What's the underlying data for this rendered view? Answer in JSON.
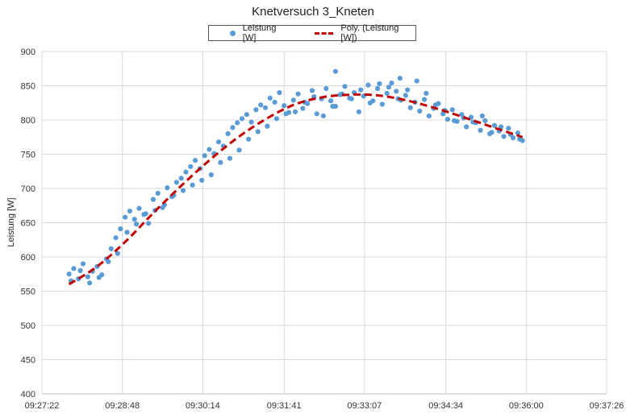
{
  "chart_data": {
    "type": "scatter",
    "title": "Knetversuch 3_Kneten",
    "xlabel": "",
    "ylabel": "Leistung [W]",
    "x_ticks": [
      "09:27:22",
      "09:28:48",
      "09:30:14",
      "09:31:41",
      "09:33:07",
      "09:34:34",
      "09:36:00",
      "09:37:26"
    ],
    "xlim": [
      "09:27:22",
      "09:37:26"
    ],
    "ylim": [
      400,
      900
    ],
    "y_ticks": [
      400,
      450,
      500,
      550,
      600,
      650,
      700,
      750,
      800,
      850,
      900
    ],
    "grid": true,
    "legend_position": "top-center",
    "colors": {
      "points": "#5b9bd5",
      "trend": "#c00000"
    },
    "series": [
      {
        "name": "Leistung [W]",
        "type": "scatter",
        "x": [
          "09:27:51",
          "09:27:56",
          "09:28:01",
          "09:28:06",
          "09:28:11",
          "09:28:16",
          "09:28:21",
          "09:28:26",
          "09:28:31",
          "09:28:36",
          "09:28:41",
          "09:28:46",
          "09:28:51",
          "09:28:56",
          "09:29:01",
          "09:29:06",
          "09:29:11",
          "09:29:16",
          "09:29:21",
          "09:29:26",
          "09:29:31",
          "09:29:36",
          "09:29:41",
          "09:29:46",
          "09:29:51",
          "09:29:56",
          "09:30:01",
          "09:30:06",
          "09:30:11",
          "09:30:16",
          "09:30:21",
          "09:30:26",
          "09:30:31",
          "09:30:36",
          "09:30:41",
          "09:30:46",
          "09:30:51",
          "09:30:56",
          "09:31:01",
          "09:31:06",
          "09:31:11",
          "09:31:16",
          "09:31:21",
          "09:31:26",
          "09:31:31",
          "09:31:36",
          "09:31:41",
          "09:31:46",
          "09:31:51",
          "09:31:56",
          "09:32:01",
          "09:32:06",
          "09:32:11",
          "09:32:16",
          "09:32:21",
          "09:32:26",
          "09:32:31",
          "09:32:36",
          "09:32:41",
          "09:32:46",
          "09:32:51",
          "09:32:56",
          "09:33:01",
          "09:33:06",
          "09:33:11",
          "09:33:16",
          "09:33:21",
          "09:33:26",
          "09:33:31",
          "09:33:36",
          "09:33:41",
          "09:33:46",
          "09:33:51",
          "09:33:56",
          "09:34:01",
          "09:34:06",
          "09:34:11",
          "09:34:16",
          "09:34:21",
          "09:34:26",
          "09:34:31",
          "09:34:36",
          "09:34:41",
          "09:34:46",
          "09:34:51",
          "09:34:56",
          "09:35:01",
          "09:35:06",
          "09:35:11",
          "09:35:16",
          "09:35:21",
          "09:35:26",
          "09:35:31",
          "09:35:36",
          "09:35:41",
          "09:35:46",
          "09:35:51",
          "09:35:56",
          "09:27:53",
          "09:28:03",
          "09:28:13",
          "09:28:23",
          "09:28:33",
          "09:28:43",
          "09:28:53",
          "09:29:03",
          "09:29:13",
          "09:29:23",
          "09:29:33",
          "09:29:43",
          "09:29:53",
          "09:30:03",
          "09:30:13",
          "09:30:23",
          "09:30:33",
          "09:30:43",
          "09:30:53",
          "09:31:03",
          "09:31:13",
          "09:31:23",
          "09:31:33",
          "09:31:43",
          "09:31:53",
          "09:32:03",
          "09:32:13",
          "09:32:23",
          "09:32:33",
          "09:32:43",
          "09:32:53",
          "09:33:03",
          "09:33:13",
          "09:33:23",
          "09:33:33",
          "09:33:43",
          "09:33:53",
          "09:34:03",
          "09:34:13",
          "09:34:23",
          "09:34:33",
          "09:34:43",
          "09:34:53",
          "09:35:03",
          "09:35:13",
          "09:35:23",
          "09:35:33",
          "09:35:43",
          "09:35:53",
          "09:32:36",
          "09:33:45"
        ],
        "y": [
          575,
          583,
          568,
          590,
          571,
          579,
          586,
          574,
          597,
          612,
          628,
          641,
          658,
          667,
          655,
          671,
          662,
          649,
          684,
          693,
          672,
          701,
          688,
          709,
          715,
          724,
          732,
          741,
          729,
          748,
          757,
          751,
          768,
          762,
          780,
          789,
          796,
          802,
          808,
          797,
          815,
          822,
          818,
          832,
          826,
          840,
          821,
          811,
          829,
          838,
          817,
          824,
          843,
          809,
          831,
          846,
          828,
          820,
          837,
          849,
          832,
          840,
          812,
          835,
          851,
          828,
          846,
          823,
          839,
          854,
          842,
          829,
          836,
          818,
          826,
          813,
          830,
          806,
          817,
          824,
          809,
          801,
          815,
          798,
          808,
          790,
          804,
          796,
          785,
          799,
          780,
          792,
          784,
          776,
          788,
          774,
          781,
          770,
          565,
          580,
          562,
          570,
          593,
          605,
          636,
          648,
          663,
          668,
          676,
          690,
          697,
          705,
          712,
          720,
          738,
          744,
          756,
          772,
          783,
          791,
          802,
          809,
          812,
          826,
          834,
          806,
          820,
          838,
          831,
          844,
          825,
          853,
          848,
          831,
          844,
          857,
          839,
          822,
          814,
          799,
          803,
          797,
          806,
          782,
          790,
          779,
          772,
          871,
          861
        ]
      },
      {
        "name": "Poly. (Leistung [W])",
        "type": "trendline",
        "x": [
          "09:27:51",
          "09:28:21",
          "09:28:51",
          "09:29:21",
          "09:29:51",
          "09:30:21",
          "09:30:51",
          "09:31:21",
          "09:31:51",
          "09:32:21",
          "09:32:51",
          "09:33:21",
          "09:33:51",
          "09:34:21",
          "09:34:51",
          "09:35:21",
          "09:35:56"
        ],
        "y": [
          560,
          586,
          622,
          664,
          704,
          741,
          774,
          801,
          822,
          833,
          837,
          836,
          829,
          818,
          805,
          791,
          775
        ]
      }
    ]
  }
}
